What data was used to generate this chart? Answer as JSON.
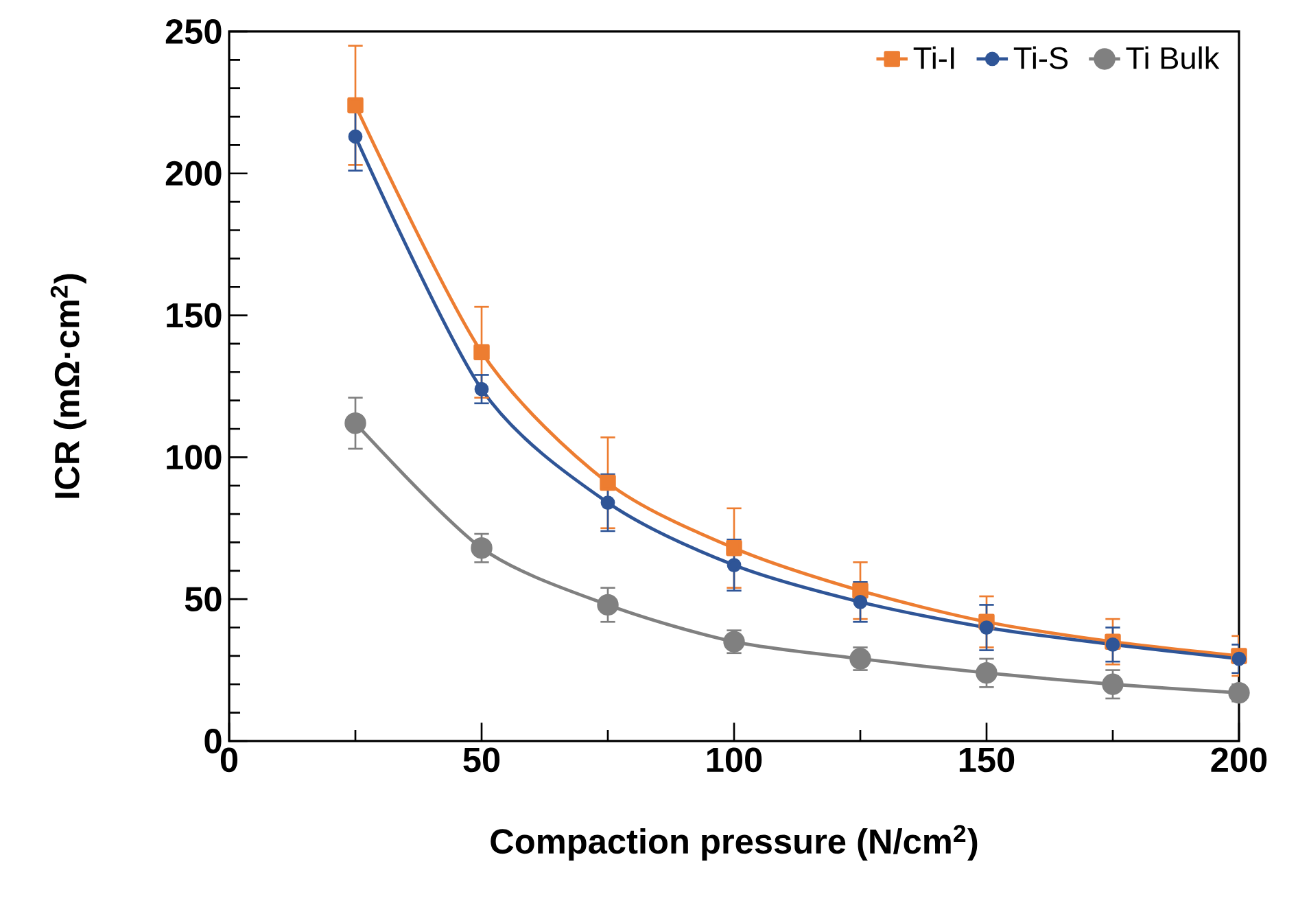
{
  "chart_data": {
    "type": "line",
    "xlabel": "Compaction pressure (N/cm$^{2}$)",
    "ylabel": "ICR (mΩ·cm$^{2}$)",
    "x": [
      25,
      50,
      75,
      100,
      125,
      150,
      175,
      200
    ],
    "series": [
      {
        "name": "Ti-I",
        "color": "#ed7d31",
        "marker": "square",
        "values": [
          224,
          137,
          91,
          68,
          53,
          42,
          35,
          30
        ],
        "errors": [
          21,
          16,
          16,
          14,
          10,
          9,
          8,
          7
        ]
      },
      {
        "name": "Ti-S",
        "color": "#2f5597",
        "marker": "circle",
        "values": [
          213,
          124,
          84,
          62,
          49,
          40,
          34,
          29
        ],
        "errors": [
          12,
          5,
          10,
          9,
          7,
          8,
          6,
          5
        ]
      },
      {
        "name": "Ti Bulk",
        "color": "#808080",
        "marker": "circle",
        "values": [
          112,
          68,
          48,
          35,
          29,
          24,
          20,
          17
        ],
        "errors": [
          9,
          5,
          6,
          4,
          4,
          5,
          5,
          3
        ]
      }
    ],
    "xlim": [
      0,
      200
    ],
    "xticks": [
      0,
      50,
      100,
      150,
      200
    ],
    "ylim": [
      0,
      250
    ],
    "yticks": [
      0,
      50,
      100,
      150,
      200,
      250
    ],
    "legend": "top right",
    "grid": false,
    "line_style": "solid"
  }
}
